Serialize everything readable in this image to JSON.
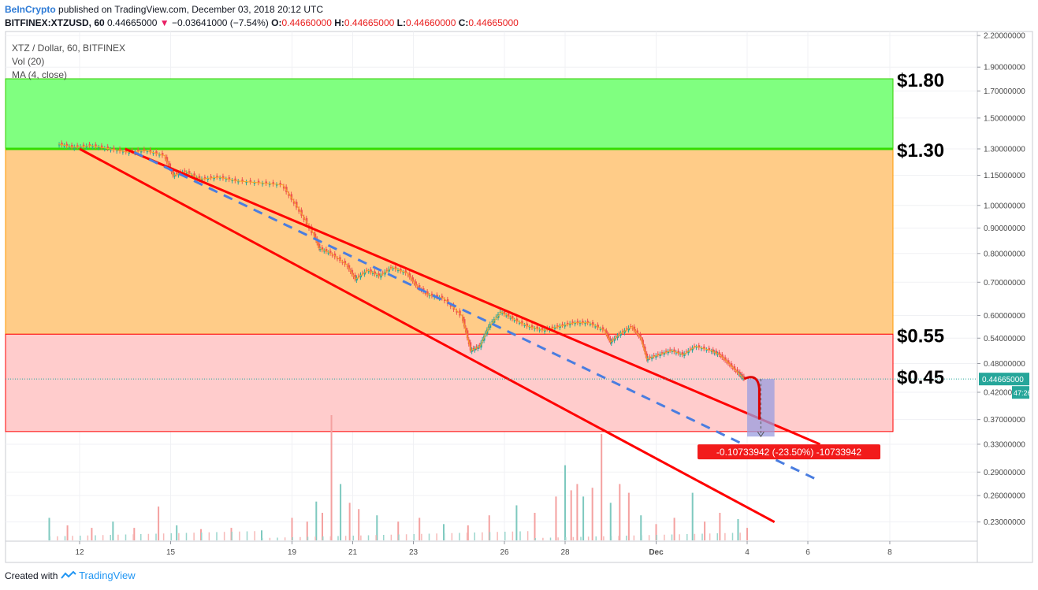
{
  "header": {
    "brand": "BeInCrypto",
    "published": "published on TradingView.com, December 03, 2018 20:12 UTC",
    "symbol": "BITFINEX:XTZUSD, 60",
    "last": "0.44665000",
    "change_arrow": "▼",
    "change": "−0.03641000 (−7.54%)",
    "o_label": "O:",
    "o": "0.44660000",
    "h_label": "H:",
    "h": "0.44665000",
    "l_label": "L:",
    "l": "0.44660000",
    "c_label": "C:",
    "c": "0.44665000"
  },
  "legend": {
    "main": "XTZ / Dollar, 60, BITFINEX",
    "vol": "Vol (20)",
    "ma": "MA (4, close)"
  },
  "footer": {
    "created": "Created with",
    "brand": "TradingView",
    "logo_icon": "tradingview-logo-icon"
  },
  "chart_data": {
    "type": "candlestick",
    "x_ticks": [
      "12",
      "15",
      "19",
      "21",
      "23",
      "26",
      "28",
      "Dec",
      "4",
      "6",
      "8"
    ],
    "y_ticks": [
      "2.20000000",
      "1.90000000",
      "1.70000000",
      "1.50000000",
      "1.30000000",
      "1.15000000",
      "1.00000000",
      "0.90000000",
      "0.80000000",
      "0.70000000",
      "0.60000000",
      "0.54000000",
      "0.48000000",
      "0.42000000",
      "0.37000000",
      "0.33000000",
      "0.29000000",
      "0.26000000",
      "0.23000000"
    ],
    "y_scale": "log",
    "ylim": [
      0.21,
      2.2
    ],
    "last_price": {
      "value": 0.44665,
      "label": "0.44665000",
      "countdown": "47:26"
    },
    "zones": [
      {
        "from": 1.3,
        "to": 1.8,
        "color": "#80ff80",
        "label": "$1.80",
        "label_at": 1.8
      },
      {
        "from": 0.55,
        "to": 1.3,
        "color": "#ffcc88",
        "label": "$1.30",
        "label_at": 1.3
      },
      {
        "from": 0.35,
        "to": 0.55,
        "color": "#ffcccc",
        "label": "$0.55",
        "label_at": 0.55
      },
      {
        "label": "$0.45",
        "label_at": 0.45
      }
    ],
    "price_path": [
      [
        11.3,
        1.33
      ],
      [
        11.8,
        1.31
      ],
      [
        12.4,
        1.32
      ],
      [
        13.0,
        1.3
      ],
      [
        13.6,
        1.28
      ],
      [
        14.2,
        1.29
      ],
      [
        14.8,
        1.26
      ],
      [
        15.1,
        1.15
      ],
      [
        15.5,
        1.17
      ],
      [
        16.0,
        1.13
      ],
      [
        16.6,
        1.14
      ],
      [
        17.2,
        1.12
      ],
      [
        18.0,
        1.11
      ],
      [
        18.7,
        1.1
      ],
      [
        19.2,
        0.99
      ],
      [
        19.7,
        0.88
      ],
      [
        19.9,
        0.82
      ],
      [
        20.3,
        0.8
      ],
      [
        20.8,
        0.76
      ],
      [
        21.1,
        0.71
      ],
      [
        21.5,
        0.74
      ],
      [
        21.9,
        0.72
      ],
      [
        22.3,
        0.75
      ],
      [
        22.8,
        0.73
      ],
      [
        23.1,
        0.69
      ],
      [
        23.5,
        0.66
      ],
      [
        24.0,
        0.65
      ],
      [
        24.6,
        0.6
      ],
      [
        24.9,
        0.51
      ],
      [
        25.2,
        0.52
      ],
      [
        25.5,
        0.57
      ],
      [
        25.9,
        0.61
      ],
      [
        26.3,
        0.59
      ],
      [
        26.8,
        0.57
      ],
      [
        27.3,
        0.56
      ],
      [
        27.8,
        0.57
      ],
      [
        28.3,
        0.58
      ],
      [
        28.8,
        0.58
      ],
      [
        29.3,
        0.56
      ],
      [
        29.5,
        0.53
      ],
      [
        29.8,
        0.55
      ],
      [
        30.2,
        0.57
      ],
      [
        30.5,
        0.54
      ],
      [
        30.7,
        0.49
      ],
      [
        31.1,
        0.5
      ],
      [
        31.5,
        0.51
      ],
      [
        31.9,
        0.5
      ],
      [
        32.3,
        0.52
      ],
      [
        32.8,
        0.51
      ],
      [
        33.1,
        0.5
      ],
      [
        33.4,
        0.48
      ],
      [
        33.7,
        0.46
      ],
      [
        33.9,
        0.447
      ]
    ],
    "channel": {
      "upper": [
        [
          13.5,
          1.3
        ],
        [
          36.4,
          0.33
        ]
      ],
      "lower": [
        [
          12.0,
          1.3
        ],
        [
          34.9,
          0.23
        ]
      ],
      "mid": [
        [
          13.8,
          1.28
        ],
        [
          36.3,
          0.28
        ]
      ]
    },
    "projection": {
      "from": [
        33.9,
        0.447
      ],
      "peak": [
        34.2,
        0.447
      ],
      "to": [
        34.5,
        0.37
      ]
    },
    "measure": {
      "x_from": 34.0,
      "x_to": 34.9,
      "y_from": 0.4467,
      "y_to": 0.342,
      "label": "-0.10733942 (-23.50%) -10733942"
    },
    "volume": [
      [
        11.0,
        0.18
      ],
      [
        11.6,
        0.12
      ],
      [
        12.4,
        0.1
      ],
      [
        13.1,
        0.15
      ],
      [
        13.8,
        0.1
      ],
      [
        14.6,
        0.27
      ],
      [
        15.2,
        0.12
      ],
      [
        16.0,
        0.09
      ],
      [
        17.0,
        0.1
      ],
      [
        18.0,
        0.08
      ],
      [
        19.0,
        0.18
      ],
      [
        19.5,
        0.15
      ],
      [
        19.8,
        0.31
      ],
      [
        20.0,
        0.22
      ],
      [
        20.3,
        1.0
      ],
      [
        20.6,
        0.45
      ],
      [
        20.9,
        0.3
      ],
      [
        21.2,
        0.25
      ],
      [
        21.8,
        0.2
      ],
      [
        22.5,
        0.15
      ],
      [
        23.2,
        0.18
      ],
      [
        24.0,
        0.13
      ],
      [
        24.8,
        0.12
      ],
      [
        25.5,
        0.2
      ],
      [
        26.4,
        0.28
      ],
      [
        27.0,
        0.22
      ],
      [
        27.7,
        0.35
      ],
      [
        28.0,
        0.6
      ],
      [
        28.2,
        0.4
      ],
      [
        28.4,
        0.45
      ],
      [
        28.6,
        0.35
      ],
      [
        28.9,
        0.42
      ],
      [
        29.2,
        0.85
      ],
      [
        29.5,
        0.3
      ],
      [
        29.8,
        0.45
      ],
      [
        30.1,
        0.38
      ],
      [
        30.5,
        0.2
      ],
      [
        31.0,
        0.13
      ],
      [
        31.6,
        0.18
      ],
      [
        32.2,
        0.38
      ],
      [
        32.6,
        0.15
      ],
      [
        33.1,
        0.22
      ],
      [
        33.7,
        0.17
      ],
      [
        34.0,
        0.1
      ]
    ],
    "colors": {
      "up": "#26a69a",
      "down": "#ef5350",
      "line": "#ff0000",
      "dashed": "#4a7de0",
      "measure_fill": "#9a9ee0"
    }
  }
}
